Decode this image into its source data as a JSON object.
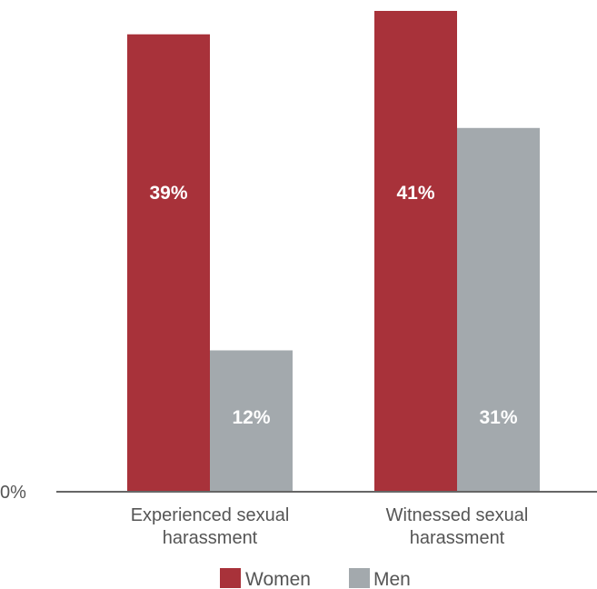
{
  "chart_data": {
    "type": "bar",
    "categories": [
      [
        "Experienced sexual",
        "harassment"
      ],
      [
        "Witnessed sexual",
        "harassment"
      ]
    ],
    "series": [
      {
        "name": "Women",
        "color": "#a8323a",
        "values": [
          39,
          41
        ],
        "labels": [
          "39%",
          "41%"
        ]
      },
      {
        "name": "Men",
        "color": "#a3a9ad",
        "values": [
          12,
          31
        ],
        "labels": [
          "12%",
          "31%"
        ]
      }
    ],
    "y_tick_label": "0%",
    "ylim": [
      0,
      41
    ],
    "grid": false,
    "legend_position": "bottom"
  }
}
